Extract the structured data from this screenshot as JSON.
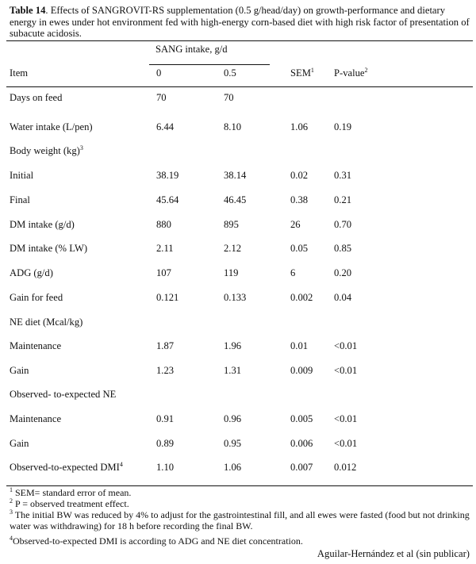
{
  "caption": {
    "label": "Table 14",
    "text": ". Effects of SANGROVIT-RS supplementation (0.5 g/head/day) on growth-performance and dietary energy in ewes under hot environment fed with high-energy corn-based diet with high risk factor of presentation of subacute acidosis."
  },
  "header": {
    "group_label": "SANG intake, g/d",
    "item": "Item",
    "col0": "0",
    "col1": "0.5",
    "sem": "SEM",
    "sem_sup": "1",
    "pval": "P-value",
    "pval_sup": "2"
  },
  "rows": [
    {
      "item": "Days on feed",
      "v0": "70",
      "v1": "70",
      "sem": "",
      "p": ""
    },
    {
      "item": "Water intake (L/pen)",
      "v0": "6.44",
      "v1": "8.10",
      "sem": "1.06",
      "p": "0.19"
    },
    {
      "item": "Body weight (kg)",
      "sup": "3",
      "v0": "",
      "v1": "",
      "sem": "",
      "p": ""
    },
    {
      "item": "Initial",
      "v0": "38.19",
      "v1": "38.14",
      "sem": "0.02",
      "p": "0.31"
    },
    {
      "item": "Final",
      "v0": "45.64",
      "v1": "46.45",
      "sem": "0.38",
      "p": "0.21"
    },
    {
      "item": "DM intake (g/d)",
      "v0": "880",
      "v1": "895",
      "sem": "26",
      "p": "0.70"
    },
    {
      "item": "DM intake (% LW)",
      "v0": "2.11",
      "v1": "2.12",
      "sem": "0.05",
      "p": "0.85"
    },
    {
      "item": "ADG (g/d)",
      "v0": "107",
      "v1": "119",
      "sem": "6",
      "p": "0.20"
    },
    {
      "item": "Gain for feed",
      "v0": "0.121",
      "v1": "0.133",
      "sem": "0.002",
      "p": "0.04"
    },
    {
      "item": "NE diet (Mcal/kg)",
      "v0": "",
      "v1": "",
      "sem": "",
      "p": ""
    },
    {
      "item": "Maintenance",
      "v0": "1.87",
      "v1": "1.96",
      "sem": "0.01",
      "p": "<0.01"
    },
    {
      "item": "Gain",
      "v0": "1.23",
      "v1": "1.31",
      "sem": "0.009",
      "p": "<0.01"
    },
    {
      "item": "Observed- to-expected NE",
      "v0": "",
      "v1": "",
      "sem": "",
      "p": ""
    },
    {
      "item": "Maintenance",
      "v0": "0.91",
      "v1": "0.96",
      "sem": "0.005",
      "p": "<0.01"
    },
    {
      "item": "Gain",
      "v0": "0.89",
      "v1": "0.95",
      "sem": "0.006",
      "p": "<0.01"
    },
    {
      "item": "Observed-to-expected DMI",
      "sup": "4",
      "v0": "1.10",
      "v1": "1.06",
      "sem": "0.007",
      "p": "0.012"
    }
  ],
  "footnotes": [
    {
      "mark": "1",
      "text": " SEM= standard error of mean."
    },
    {
      "mark": "2",
      "text": " P = observed treatment effect."
    },
    {
      "mark": "3",
      "text": " The initial BW was reduced by 4% to adjust for the gastrointestinal fill, and all ewes were fasted (food but not drinking water was withdrawing) for 18 h before recording the final BW."
    },
    {
      "mark": "4",
      "text": "Observed-to-expected DMI is according to ADG and NE diet concentration."
    }
  ],
  "source": "Aguilar-Hernández et al (sin publicar)"
}
